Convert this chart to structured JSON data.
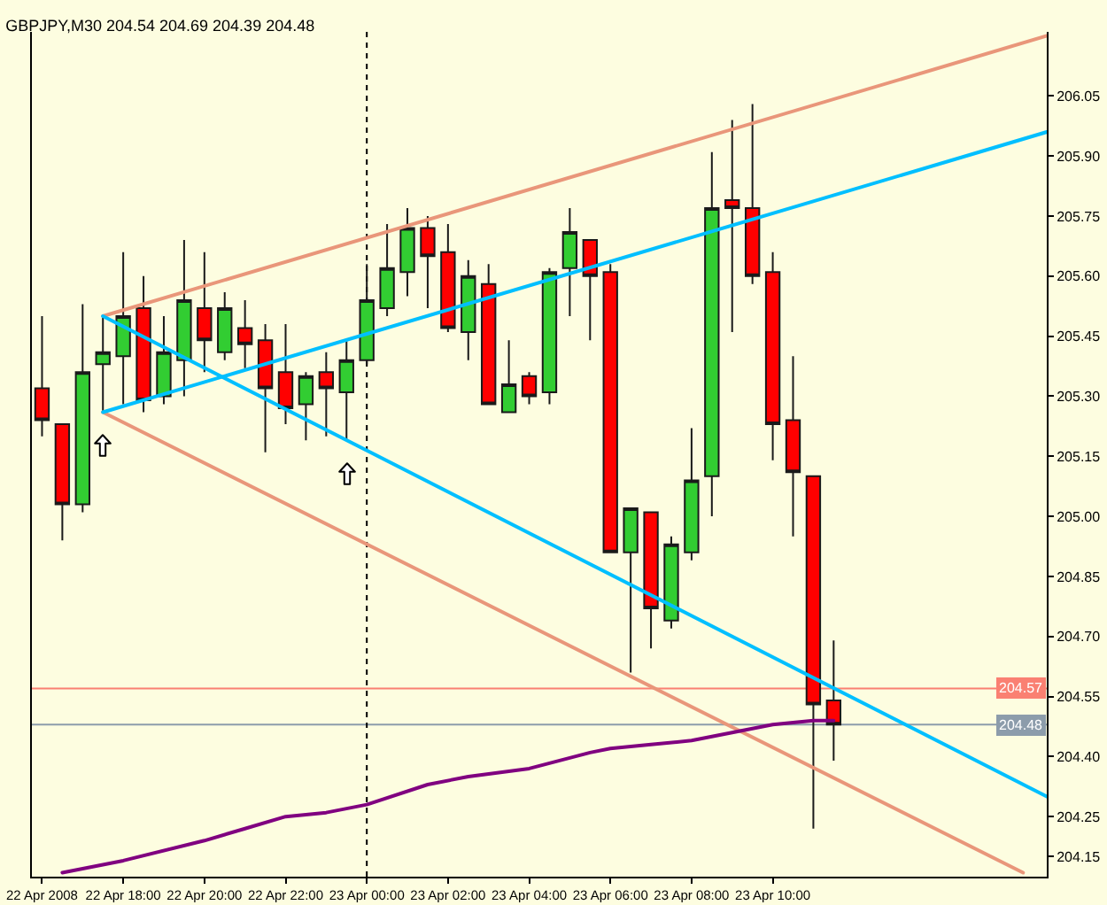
{
  "chart_data": {
    "type": "candlestick",
    "title": "GBPJPY,M30 204.54 204.69 204.39 204.48",
    "x": [
      "2008-04-22T16:00",
      "2008-04-22T16:30",
      "2008-04-22T17:00",
      "2008-04-22T17:30",
      "2008-04-22T18:00",
      "2008-04-22T18:30",
      "2008-04-22T19:00",
      "2008-04-22T19:30",
      "2008-04-22T20:00",
      "2008-04-22T20:30",
      "2008-04-22T21:00",
      "2008-04-22T21:30",
      "2008-04-22T22:00",
      "2008-04-22T22:30",
      "2008-04-22T23:00",
      "2008-04-22T23:30",
      "2008-04-23T00:00",
      "2008-04-23T00:30",
      "2008-04-23T01:00",
      "2008-04-23T01:30",
      "2008-04-23T02:00",
      "2008-04-23T02:30",
      "2008-04-23T03:00",
      "2008-04-23T03:30",
      "2008-04-23T04:00",
      "2008-04-23T04:30",
      "2008-04-23T05:00",
      "2008-04-23T05:30",
      "2008-04-23T06:00",
      "2008-04-23T06:30",
      "2008-04-23T07:00",
      "2008-04-23T07:30",
      "2008-04-23T08:00",
      "2008-04-23T08:30",
      "2008-04-23T09:00",
      "2008-04-23T09:30",
      "2008-04-23T10:00",
      "2008-04-23T10:30",
      "2008-04-23T11:00",
      "2008-04-23T11:30"
    ],
    "ohlc": [
      [
        205.32,
        205.5,
        205.2,
        205.24
      ],
      [
        205.23,
        205.23,
        204.94,
        205.03
      ],
      [
        205.03,
        205.53,
        205.01,
        205.36
      ],
      [
        205.38,
        205.5,
        205.26,
        205.41
      ],
      [
        205.4,
        205.66,
        205.28,
        205.5
      ],
      [
        205.52,
        205.6,
        205.26,
        205.29
      ],
      [
        205.3,
        205.5,
        205.28,
        205.41
      ],
      [
        205.39,
        205.69,
        205.3,
        205.54
      ],
      [
        205.52,
        205.66,
        205.36,
        205.44
      ],
      [
        205.41,
        205.56,
        205.39,
        205.52
      ],
      [
        205.47,
        205.54,
        205.37,
        205.43
      ],
      [
        205.44,
        205.48,
        205.16,
        205.32
      ],
      [
        205.36,
        205.48,
        205.23,
        205.27
      ],
      [
        205.28,
        205.36,
        205.19,
        205.35
      ],
      [
        205.36,
        205.41,
        205.2,
        205.32
      ],
      [
        205.31,
        205.44,
        205.19,
        205.39
      ],
      [
        205.39,
        205.63,
        205.38,
        205.54
      ],
      [
        205.52,
        205.73,
        205.5,
        205.62
      ],
      [
        205.61,
        205.77,
        205.55,
        205.72
      ],
      [
        205.72,
        205.75,
        205.52,
        205.65
      ],
      [
        205.66,
        205.73,
        205.46,
        205.47
      ],
      [
        205.46,
        205.64,
        205.39,
        205.6
      ],
      [
        205.58,
        205.63,
        205.28,
        205.28
      ],
      [
        205.26,
        205.44,
        205.26,
        205.33
      ],
      [
        205.35,
        205.36,
        205.28,
        205.3
      ],
      [
        205.31,
        205.62,
        205.28,
        205.61
      ],
      [
        205.62,
        205.77,
        205.5,
        205.71
      ],
      [
        205.69,
        205.69,
        205.44,
        205.6
      ],
      [
        205.61,
        205.63,
        204.91,
        204.91
      ],
      [
        204.91,
        205.02,
        204.61,
        205.02
      ],
      [
        205.01,
        205.01,
        204.67,
        204.77
      ],
      [
        204.74,
        204.95,
        204.72,
        204.93
      ],
      [
        204.91,
        205.22,
        204.89,
        205.09
      ],
      [
        205.1,
        205.91,
        205.0,
        205.77
      ],
      [
        205.79,
        205.99,
        205.46,
        205.77
      ],
      [
        205.77,
        206.03,
        205.58,
        205.6
      ],
      [
        205.61,
        205.66,
        205.14,
        205.23
      ],
      [
        205.24,
        205.4,
        204.95,
        205.11
      ],
      [
        205.1,
        205.1,
        204.22,
        204.53
      ],
      [
        204.54,
        204.69,
        204.39,
        204.48
      ]
    ],
    "colors": [
      "#ff0000",
      "#ff0000",
      "#32cd32",
      "#32cd32",
      "#32cd32",
      "#ff0000",
      "#32cd32",
      "#32cd32",
      "#ff0000",
      "#32cd32",
      "#ff0000",
      "#ff0000",
      "#ff0000",
      "#32cd32",
      "#ff0000",
      "#32cd32",
      "#32cd32",
      "#32cd32",
      "#32cd32",
      "#ff0000",
      "#ff0000",
      "#32cd32",
      "#ff0000",
      "#32cd32",
      "#ff0000",
      "#32cd32",
      "#32cd32",
      "#ff0000",
      "#ff0000",
      "#32cd32",
      "#ff0000",
      "#32cd32",
      "#32cd32",
      "#32cd32",
      "#ff0000",
      "#ff0000",
      "#ff0000",
      "#ff0000",
      "#ff0000",
      "#ff0000"
    ],
    "series": [
      {
        "type": "line",
        "color": "#e9967a",
        "x": [
          "2008-04-22T17:30",
          "2008-04-23T16:45"
        ],
        "values": [
          205.5,
          206.2
        ]
      },
      {
        "type": "line",
        "color": "#e9967a",
        "x": [
          "2008-04-22T17:30",
          "2008-04-23T16:10"
        ],
        "values": [
          205.26,
          204.11
        ]
      },
      {
        "type": "line",
        "color": "#00bfff",
        "x": [
          "2008-04-22T17:30",
          "2008-04-23T16:45"
        ],
        "values": [
          205.26,
          205.96
        ]
      },
      {
        "type": "line",
        "color": "#00bfff",
        "x": [
          "2008-04-22T17:30",
          "2008-04-23T16:45"
        ],
        "values": [
          205.5,
          204.3
        ]
      },
      {
        "type": "line",
        "color": "#800080",
        "x": [
          "2008-04-22T16:30",
          "2008-04-22T18:00",
          "2008-04-22T20:00",
          "2008-04-22T21:00",
          "2008-04-22T22:00",
          "2008-04-22T23:00",
          "2008-04-23T00:00",
          "2008-04-23T01:30",
          "2008-04-23T02:30",
          "2008-04-23T04:00",
          "2008-04-23T05:30",
          "2008-04-23T06:00",
          "2008-04-23T07:00",
          "2008-04-23T08:00",
          "2008-04-23T09:00",
          "2008-04-23T10:00",
          "2008-04-23T11:00",
          "2008-04-23T11:30"
        ],
        "values": [
          204.11,
          204.14,
          204.19,
          204.22,
          204.25,
          204.26,
          204.28,
          204.33,
          204.35,
          204.37,
          204.41,
          204.42,
          204.43,
          204.44,
          204.46,
          204.48,
          204.49,
          204.49
        ]
      }
    ],
    "xlim": [
      "2008-04-22T15:45",
      "2008-04-23T16:45"
    ],
    "xticks": [
      {
        "value": "2008-04-22T16:00",
        "label": "22 Apr 2008"
      },
      {
        "value": "2008-04-22T18:00",
        "label": "22 Apr 18:00"
      },
      {
        "value": "2008-04-22T20:00",
        "label": "22 Apr 20:00"
      },
      {
        "value": "2008-04-22T22:00",
        "label": "22 Apr 22:00"
      },
      {
        "value": "2008-04-23T00:00",
        "label": "23 Apr 00:00"
      },
      {
        "value": "2008-04-23T02:00",
        "label": "23 Apr 02:00"
      },
      {
        "value": "2008-04-23T04:00",
        "label": "23 Apr 04:00"
      },
      {
        "value": "2008-04-23T06:00",
        "label": "23 Apr 06:00"
      },
      {
        "value": "2008-04-23T08:00",
        "label": "23 Apr 08:00"
      },
      {
        "value": "2008-04-23T10:00",
        "label": "23 Apr 10:00"
      }
    ],
    "ylim": [
      204.1,
      206.21
    ],
    "yticks": [
      206.05,
      {
        "value": 205.9,
        "label": "205.90"
      },
      205.75,
      {
        "value": 205.6,
        "label": "205.60"
      },
      205.45,
      {
        "value": 205.3,
        "label": "205.30"
      },
      205.15,
      {
        "value": 205.0,
        "label": "205.00"
      },
      204.85,
      {
        "value": 204.7,
        "label": "204.70"
      },
      204.55,
      {
        "value": 204.4,
        "label": "204.40"
      },
      204.25,
      204.15
    ],
    "ref_lines": [
      {
        "axis": "y",
        "value": 204.57,
        "label": "204.57",
        "color": "#fa8072"
      },
      {
        "axis": "y",
        "value": 204.48,
        "label": "204.48",
        "color": "#8c9cab"
      },
      {
        "axis": "x",
        "value": "2008-04-23T00:00",
        "color": "#000000",
        "line_style": "dotted"
      }
    ]
  }
}
